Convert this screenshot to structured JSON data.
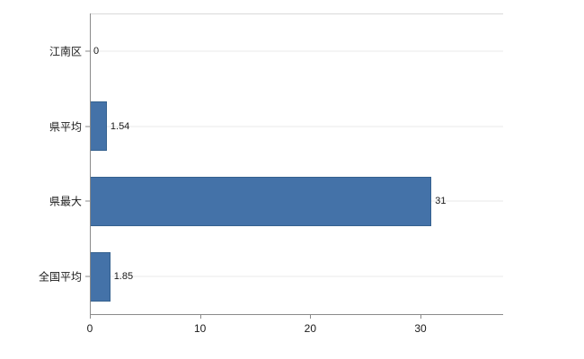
{
  "chart_data": {
    "type": "bar",
    "orientation": "horizontal",
    "title": "",
    "xlabel": "",
    "ylabel": "",
    "categories": [
      "江南区",
      "県平均",
      "県最大",
      "全国平均"
    ],
    "values": [
      0,
      1.54,
      31,
      1.85
    ],
    "value_labels": [
      "0",
      "1.54",
      "31",
      "1.85"
    ],
    "xlim": [
      0,
      37.5
    ],
    "x_ticks": [
      0,
      10,
      20,
      30
    ],
    "x_tick_labels": [
      "0",
      "10",
      "20",
      "30"
    ],
    "grid": true,
    "legend": "none",
    "bar_color": "#4472a8",
    "bar_border_color": "#35618f",
    "axis_color": "#8a8a8a",
    "gridline_color": "#e9e9e9"
  }
}
